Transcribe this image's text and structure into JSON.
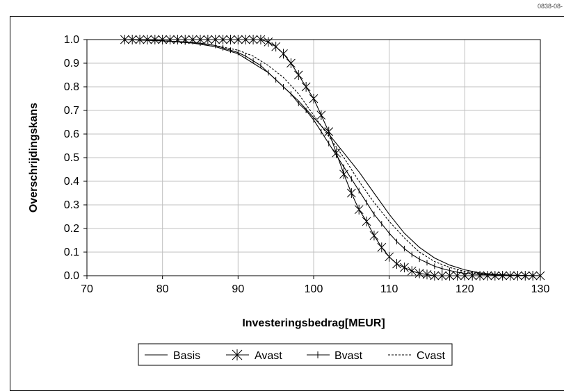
{
  "figure_code": "0838-08-",
  "chart_data": {
    "type": "line",
    "title": "",
    "xlabel": "Investeringsbedrag[MEUR]",
    "ylabel": "Overschrijdingskans",
    "xlim": [
      70,
      130
    ],
    "ylim": [
      0,
      1.0
    ],
    "xticks": [
      "70",
      "80",
      "90",
      "100",
      "110",
      "120",
      "130"
    ],
    "yticks": [
      "0.0",
      "0.1",
      "0.2",
      "0.3",
      "0.4",
      "0.5",
      "0.6",
      "0.7",
      "0.8",
      "0.9",
      "1.0"
    ],
    "grid": "both",
    "legend_position": "bottom",
    "series": [
      {
        "name": "Basis",
        "style": "solid",
        "marker": "none",
        "x": [
          75,
          80,
          84,
          87,
          90,
          92,
          94,
          96,
          98,
          100,
          102,
          104,
          106,
          108,
          110,
          112,
          114,
          116,
          118,
          120,
          122,
          124,
          126,
          128,
          130
        ],
        "y": [
          1.0,
          0.995,
          0.985,
          0.97,
          0.94,
          0.9,
          0.86,
          0.8,
          0.74,
          0.67,
          0.6,
          0.52,
          0.44,
          0.35,
          0.26,
          0.18,
          0.12,
          0.075,
          0.045,
          0.025,
          0.012,
          0.006,
          0.003,
          0.001,
          0.0
        ]
      },
      {
        "name": "Avast",
        "style": "solid",
        "marker": "asterisk",
        "x": [
          75,
          76,
          77,
          78,
          79,
          80,
          81,
          82,
          83,
          84,
          85,
          86,
          87,
          88,
          89,
          90,
          91,
          92,
          93,
          94,
          95,
          96,
          97,
          98,
          99,
          100,
          101,
          102,
          103,
          104,
          105,
          106,
          107,
          108,
          109,
          110,
          111,
          112,
          113,
          114,
          115,
          116,
          117,
          118,
          119,
          120,
          121,
          122,
          123,
          124,
          125,
          126,
          127,
          128,
          129,
          130
        ],
        "y": [
          1.0,
          1.0,
          1.0,
          1.0,
          1.0,
          1.0,
          1.0,
          1.0,
          1.0,
          1.0,
          1.0,
          1.0,
          1.0,
          1.0,
          1.0,
          1.0,
          1.0,
          1.0,
          1.0,
          0.99,
          0.97,
          0.94,
          0.9,
          0.85,
          0.8,
          0.75,
          0.68,
          0.61,
          0.52,
          0.43,
          0.35,
          0.28,
          0.23,
          0.17,
          0.12,
          0.08,
          0.05,
          0.035,
          0.02,
          0.01,
          0.005,
          0.0,
          0.0,
          0.0,
          0.0,
          0.0,
          0.0,
          0.0,
          0.0,
          0.0,
          0.0,
          0.0,
          0.0,
          0.0,
          0.0,
          0.0
        ]
      },
      {
        "name": "Bvast",
        "style": "solid",
        "marker": "plus",
        "x": [
          75,
          77,
          79,
          81,
          83,
          85,
          87,
          88,
          89,
          90,
          91,
          92,
          93,
          94,
          95,
          96,
          97,
          98,
          99,
          100,
          101,
          102,
          103,
          104,
          105,
          106,
          107,
          108,
          109,
          110,
          111,
          112,
          113,
          114,
          115,
          116,
          117,
          118,
          119,
          120,
          121,
          122,
          123,
          124,
          125,
          126,
          127,
          128,
          129,
          130
        ],
        "y": [
          1.0,
          0.998,
          0.996,
          0.993,
          0.99,
          0.985,
          0.975,
          0.965,
          0.955,
          0.945,
          0.93,
          0.91,
          0.89,
          0.86,
          0.83,
          0.8,
          0.77,
          0.73,
          0.7,
          0.66,
          0.61,
          0.56,
          0.51,
          0.46,
          0.41,
          0.36,
          0.31,
          0.26,
          0.22,
          0.18,
          0.145,
          0.115,
          0.09,
          0.07,
          0.055,
          0.04,
          0.03,
          0.022,
          0.015,
          0.01,
          0.007,
          0.005,
          0.004,
          0.003,
          0.002,
          0.001,
          0.001,
          0.0,
          0.0,
          0.0
        ]
      },
      {
        "name": "Cvast",
        "style": "dashed",
        "marker": "none",
        "x": [
          75,
          80,
          84,
          87,
          90,
          92,
          94,
          96,
          98,
          100,
          102,
          104,
          106,
          108,
          110,
          112,
          114,
          116,
          118,
          120,
          122,
          124,
          126,
          128,
          130
        ],
        "y": [
          1.0,
          0.996,
          0.988,
          0.975,
          0.955,
          0.93,
          0.89,
          0.84,
          0.77,
          0.68,
          0.59,
          0.5,
          0.4,
          0.31,
          0.23,
          0.16,
          0.1,
          0.06,
          0.035,
          0.018,
          0.009,
          0.004,
          0.002,
          0.001,
          0.0
        ]
      }
    ]
  }
}
